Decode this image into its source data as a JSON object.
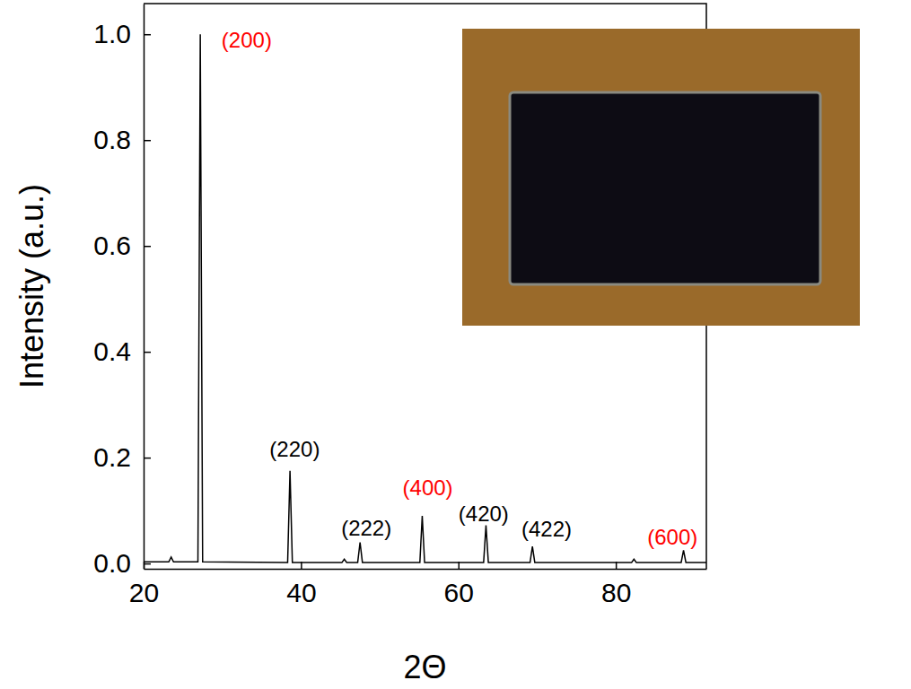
{
  "chart_data": {
    "type": "line",
    "x_label": "2Θ",
    "y_label": "Intensity (a.u.)",
    "xlim": [
      20,
      91.5
    ],
    "xticks": [
      20,
      40,
      60,
      80
    ],
    "ylim": [
      -0.01,
      1.058
    ],
    "yticks": [
      {
        "value": 0,
        "label": "0.0"
      },
      0.2,
      0.4,
      0.6,
      0.8,
      {
        "value": 1,
        "label": "1.0"
      }
    ],
    "x": [
      20,
      23.2,
      23.5,
      23.8,
      26.9,
      27.2,
      27.5,
      38.3,
      38.6,
      38.9,
      45.2,
      45.5,
      45.8,
      47.2,
      47.5,
      47.8,
      55.1,
      55.4,
      55.7,
      63.2,
      63.5,
      63.8,
      69.1,
      69.4,
      69.7,
      82.0,
      82.3,
      82.6,
      88.3,
      88.6,
      88.9,
      91.5
    ],
    "series": [
      {
        "color": "#000000",
        "values": [
          0.003,
          0.003,
          0.012,
          0.003,
          0.003,
          1.0,
          0.003,
          0.002,
          0.175,
          0.002,
          0.002,
          0.008,
          0.002,
          0.002,
          0.04,
          0.002,
          0.002,
          0.09,
          0.002,
          0.002,
          0.072,
          0.002,
          0.002,
          0.032,
          0.002,
          0.002,
          0.008,
          0.002,
          0.002,
          0.025,
          0.002,
          0.002
        ]
      }
    ],
    "annotations": [
      {
        "text": "(200)",
        "x": 33.1,
        "y": 0.985,
        "color": "#ff0000"
      },
      {
        "text": "(220)",
        "x": 39.2,
        "y": 0.213,
        "color": "#000000"
      },
      {
        "text": "(222)",
        "x": 48.3,
        "y": 0.064,
        "color": "#000000"
      },
      {
        "text": "(400)",
        "x": 56.1,
        "y": 0.139,
        "color": "#ff0000"
      },
      {
        "text": "(420)",
        "x": 63.2,
        "y": 0.09,
        "color": "#000000"
      },
      {
        "text": "(422)",
        "x": 71.2,
        "y": 0.061,
        "color": "#000000"
      },
      {
        "text": "(600)",
        "x": 87.2,
        "y": 0.047,
        "color": "#ff0000"
      }
    ]
  }
}
